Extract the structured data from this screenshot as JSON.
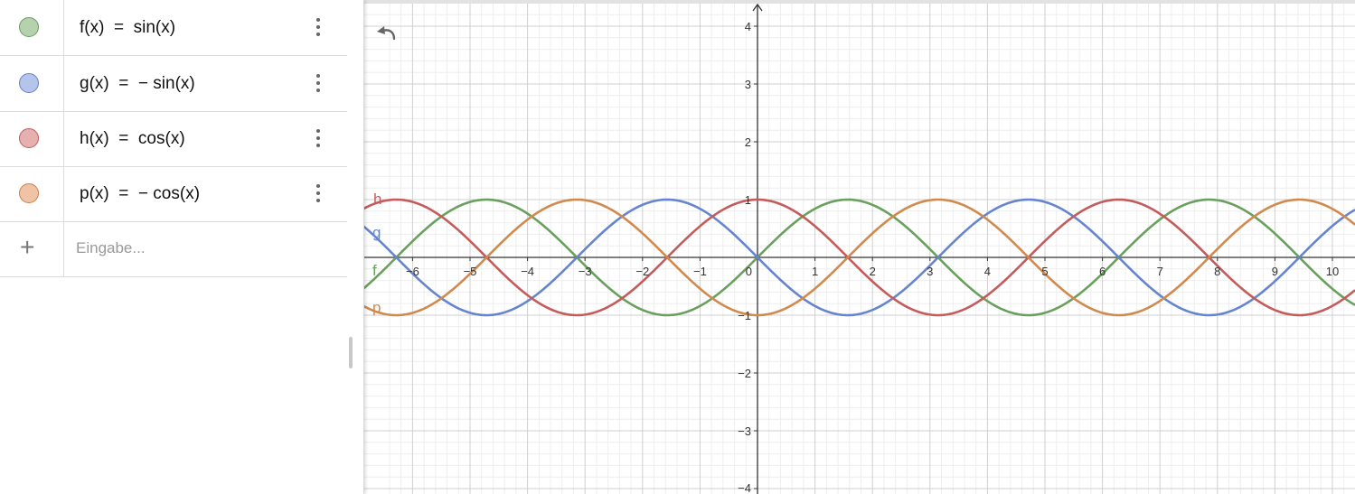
{
  "algebra": {
    "rows": [
      {
        "name": "f",
        "expr": "f(x)  =  sin(x)",
        "fill": "#b5d1ad",
        "stroke": "#6b9a62"
      },
      {
        "name": "g",
        "expr": "g(x)  =  − sin(x)",
        "fill": "#b5c4ea",
        "stroke": "#6880c8"
      },
      {
        "name": "h",
        "expr": "h(x)  =  cos(x)",
        "fill": "#e6b0b0",
        "stroke": "#bd5e5e"
      },
      {
        "name": "p",
        "expr": "p(x)  =  − cos(x)",
        "fill": "#efc3a6",
        "stroke": "#c97f4e"
      }
    ],
    "input_placeholder": "Eingabe..."
  },
  "graph": {
    "x_ticks": [
      "−6",
      "−5",
      "−4",
      "−3",
      "−2",
      "−1",
      "0",
      "1",
      "2",
      "3",
      "4",
      "5",
      "6",
      "7",
      "8",
      "9",
      "10"
    ],
    "y_ticks": [
      "4",
      "3",
      "2",
      "1",
      "−1",
      "−2",
      "−3",
      "−4"
    ]
  },
  "chart_data": {
    "type": "line",
    "xlim": [
      -6.5,
      10.3
    ],
    "ylim": [
      -4.1,
      4.3
    ],
    "grid": true,
    "series": [
      {
        "name": "f",
        "expr": "sin(x)",
        "color": "#6aa05e"
      },
      {
        "name": "g",
        "expr": "-sin(x)",
        "color": "#6685d0"
      },
      {
        "name": "h",
        "expr": "cos(x)",
        "color": "#c45c5c"
      },
      {
        "name": "p",
        "expr": "-cos(x)",
        "color": "#d18a4e"
      }
    ]
  },
  "colors": {
    "axis": "#333333",
    "grid_major": "#cfcfcf",
    "grid_minor": "#eeeeee"
  },
  "icons": {
    "undo": "undo-icon",
    "menu": "vertical-dots-icon",
    "add": "plus-icon"
  }
}
